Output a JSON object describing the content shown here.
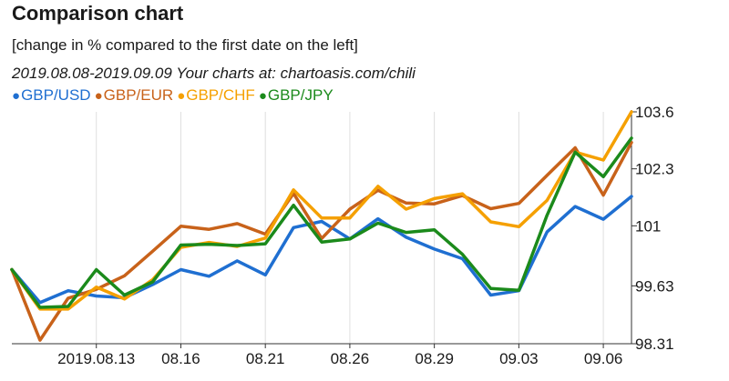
{
  "header": {
    "title": "Comparison chart",
    "subtitle": "[change in % compared to the first date on the left]",
    "dateline": "2019.08.08-2019.09.09 Your charts at: chartoasis.com/chili"
  },
  "chart_data": {
    "type": "line",
    "title": "Comparison chart",
    "subtitle": "[change in % compared to the first date on the left]",
    "xlabel": "",
    "ylabel": "",
    "x_ticks": [
      {
        "index": 3,
        "label": "2019.08.13"
      },
      {
        "index": 6,
        "label": "08.16"
      },
      {
        "index": 9,
        "label": "08.21"
      },
      {
        "index": 12,
        "label": "08.26"
      },
      {
        "index": 15,
        "label": "08.29"
      },
      {
        "index": 18,
        "label": "09.03"
      },
      {
        "index": 21,
        "label": "09.06"
      }
    ],
    "y_ticks": [
      {
        "value": 103.6,
        "label": "103.6"
      },
      {
        "value": 102.3,
        "label": "102.3"
      },
      {
        "value": 101.0,
        "label": "101"
      },
      {
        "value": 99.63,
        "label": "99.63"
      },
      {
        "value": 98.31,
        "label": "98.31"
      }
    ],
    "ylim": [
      98.31,
      103.6
    ],
    "grid": "vertical",
    "legend_position": "top-left",
    "series": [
      {
        "name": "GBP/USD",
        "color": "#1f6fd1",
        "values": [
          100.0,
          99.25,
          99.52,
          99.4,
          99.36,
          99.66,
          100.0,
          99.85,
          100.2,
          99.88,
          100.96,
          101.1,
          100.7,
          101.16,
          100.74,
          100.47,
          100.25,
          99.42,
          99.52,
          100.86,
          101.44,
          101.15,
          101.67
        ]
      },
      {
        "name": "GBP/EUR",
        "color": "#c8621a",
        "values": [
          100.0,
          98.39,
          99.35,
          99.55,
          99.86,
          100.42,
          100.99,
          100.92,
          101.05,
          100.81,
          101.74,
          100.71,
          101.38,
          101.81,
          101.52,
          101.5,
          101.69,
          101.39,
          101.51,
          102.15,
          102.78,
          101.7,
          102.9
        ]
      },
      {
        "name": "GBP/CHF",
        "color": "#f5a000",
        "values": [
          100.0,
          99.1,
          99.1,
          99.6,
          99.33,
          99.77,
          100.51,
          100.62,
          100.53,
          100.72,
          101.82,
          101.18,
          101.18,
          101.9,
          101.38,
          101.62,
          101.73,
          101.09,
          100.98,
          101.58,
          102.68,
          102.5,
          103.6
        ]
      },
      {
        "name": "GBP/JPY",
        "color": "#1b8a1b",
        "values": [
          100.0,
          99.14,
          99.16,
          100.0,
          99.42,
          99.72,
          100.56,
          100.58,
          100.55,
          100.59,
          101.47,
          100.63,
          100.7,
          101.06,
          100.85,
          100.91,
          100.35,
          99.57,
          99.53,
          101.24,
          102.68,
          102.12,
          103.0
        ]
      }
    ]
  },
  "colors": {
    "text": "#1a1a1a",
    "grid": "#dedede",
    "axis": "#333333"
  }
}
